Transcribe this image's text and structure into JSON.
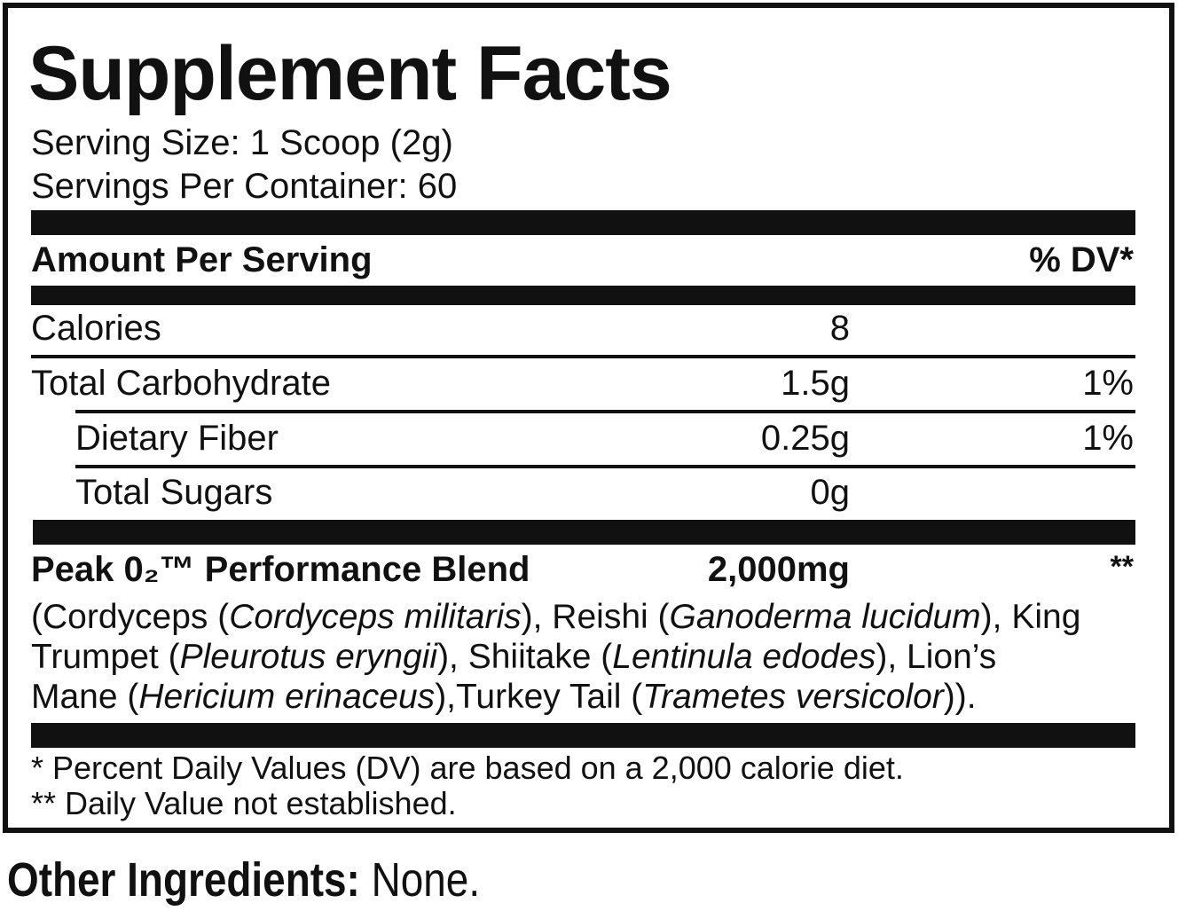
{
  "title": "Supplement Facts",
  "serving_size": "Serving Size: 1 Scoop (2g)",
  "servings_per_container": "Servings Per Container: 60",
  "header": {
    "amount": "Amount Per Serving",
    "dv": "% DV*"
  },
  "rows": [
    {
      "name": "Calories",
      "amount": "8"
    },
    {
      "name": "Total Carbohydrate",
      "amount": "1.5g",
      "dv": "1%"
    },
    {
      "name": "Dietary Fiber",
      "amount": "0.25g",
      "dv": "1%"
    },
    {
      "name": "Total Sugars",
      "amount": "0g"
    }
  ],
  "blend": {
    "name": "Peak 0₂™ Performance Blend",
    "amount": "2,000mg",
    "dv": "**",
    "ingredients": [
      [
        {
          "text": "(Cordyceps (",
          "italic": false
        },
        {
          "text": "Cordyceps militaris",
          "italic": true
        },
        {
          "text": "), Reishi (",
          "italic": false
        },
        {
          "text": "Ganoderma lucidum",
          "italic": true
        },
        {
          "text": "), King",
          "italic": false
        }
      ],
      [
        {
          "text": "Trumpet (",
          "italic": false
        },
        {
          "text": "Pleurotus eryngii",
          "italic": true
        },
        {
          "text": "), Shiitake (",
          "italic": false
        },
        {
          "text": "Lentinula edodes",
          "italic": true
        },
        {
          "text": "), Lion’s",
          "italic": false
        }
      ],
      [
        {
          "text": "Mane (",
          "italic": false
        },
        {
          "text": "Hericium erinaceus",
          "italic": true
        },
        {
          "text": "),Turkey Tail (",
          "italic": false
        },
        {
          "text": "Trametes versicolor",
          "italic": true
        },
        {
          "text": ")).",
          "italic": false
        }
      ]
    ]
  },
  "footnotes": [
    "* Percent Daily Values (DV) are based on a 2,000 calorie diet.",
    "** Daily Value not established."
  ],
  "other_ingredients": {
    "label": "Other Ingredients:",
    "value": "None."
  }
}
